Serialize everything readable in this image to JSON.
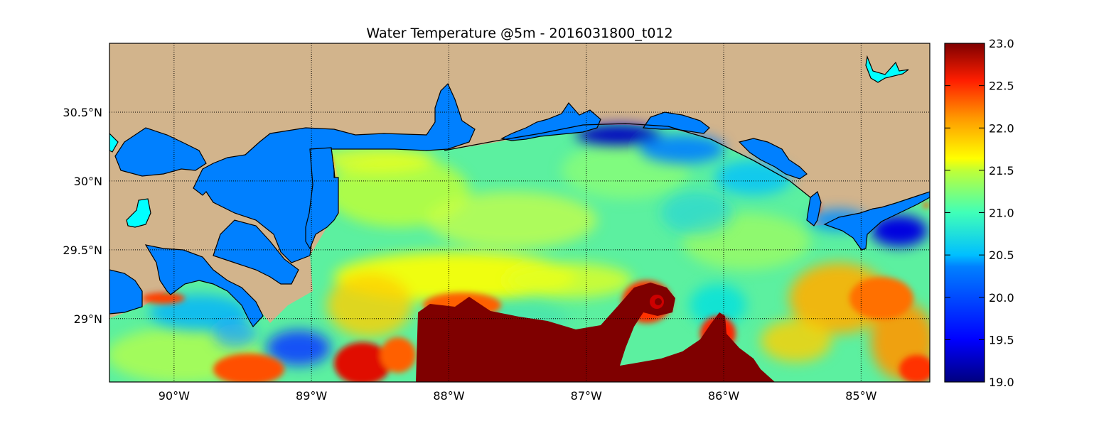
{
  "figure": {
    "title": "Water Temperature @5m - 2016031800_t012"
  },
  "map": {
    "region": "Northern Gulf of Mexico",
    "extent": {
      "lon": [
        -90.47,
        -84.5
      ],
      "lat": [
        28.54,
        31.0
      ]
    },
    "colormap": "jet",
    "colors": {
      "land": "#D2B48C",
      "inland_water": "#0080FF",
      "lake_highlight": "#00FFFF",
      "coastline": "#000000"
    },
    "grid": {
      "style": "dotted",
      "on": true
    }
  },
  "axes": {
    "x_ticks": [
      {
        "value": -90,
        "label": "90°W"
      },
      {
        "value": -89,
        "label": "89°W"
      },
      {
        "value": -88,
        "label": "88°W"
      },
      {
        "value": -87,
        "label": "87°W"
      },
      {
        "value": -86,
        "label": "86°W"
      },
      {
        "value": -85,
        "label": "85°W"
      }
    ],
    "y_ticks": [
      {
        "value": 30.5,
        "label": "30.5°N"
      },
      {
        "value": 30.0,
        "label": "30°N"
      },
      {
        "value": 29.5,
        "label": "29.5°N"
      },
      {
        "value": 29.0,
        "label": "29°N"
      }
    ]
  },
  "colorbar": {
    "range": [
      19.0,
      23.0
    ],
    "ticks": [
      "23.0",
      "22.5",
      "22.0",
      "21.5",
      "21.0",
      "20.5",
      "20.0",
      "19.5",
      "19.0"
    ]
  }
}
